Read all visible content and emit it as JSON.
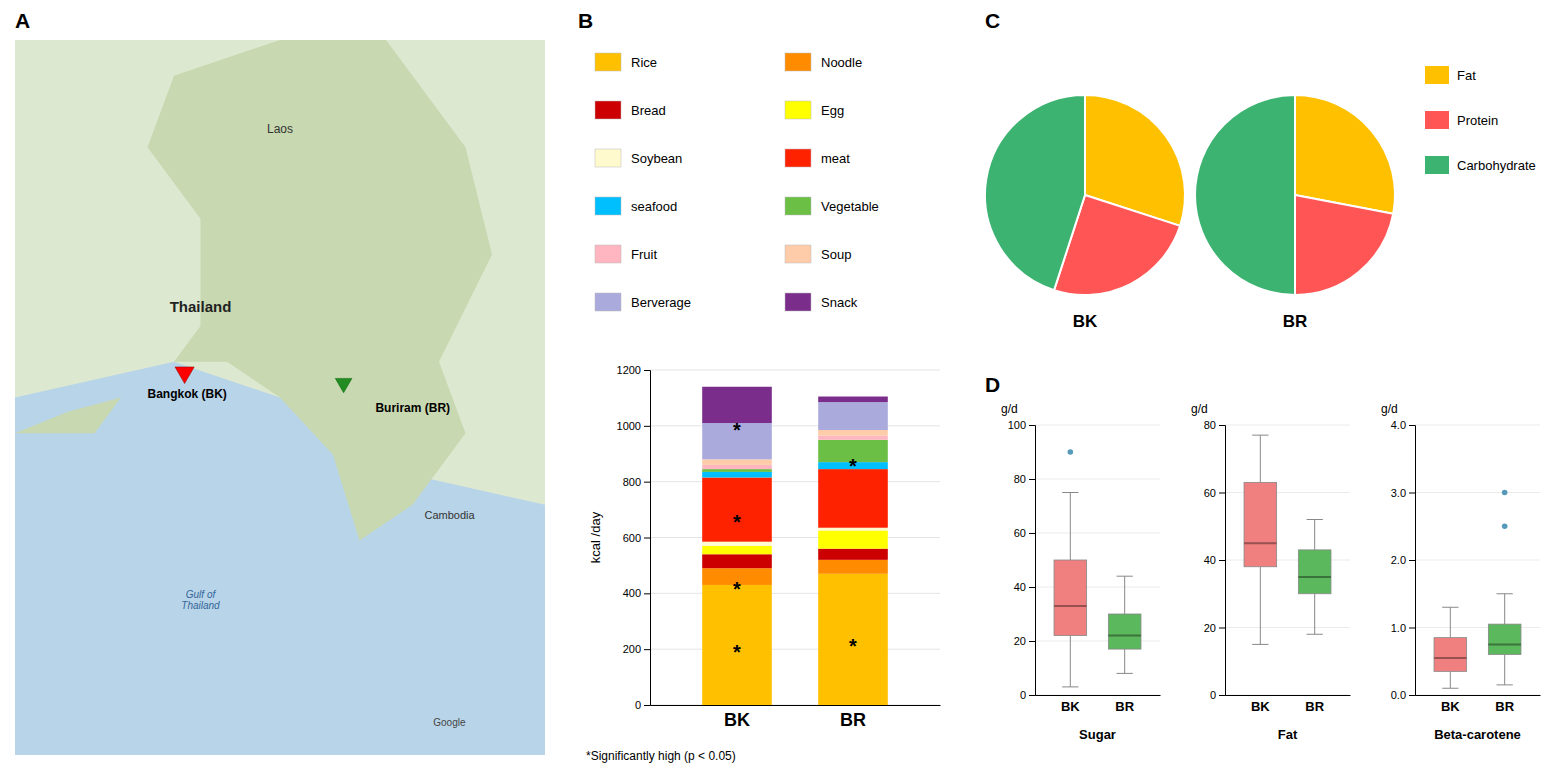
{
  "chart_data": [
    {
      "type": "map",
      "title": "A",
      "annotations": [
        "Laos",
        "Thailand",
        "Buriram (BR)",
        "Bangkok (BK)",
        "Cambodia",
        "Gulf of\nThailand",
        "Google"
      ]
    },
    {
      "type": "bar",
      "title": "B",
      "stacked": true,
      "categories": [
        "BK",
        "BR"
      ],
      "series": [
        {
          "name": "Rice",
          "color": "#FFC000",
          "values": [
            430,
            470
          ]
        },
        {
          "name": "Noodle",
          "color": "#FF8C00",
          "values": [
            60,
            50
          ]
        },
        {
          "name": "Bread",
          "color": "#CC0000",
          "values": [
            50,
            40
          ]
        },
        {
          "name": "Egg",
          "color": "#FFFF00",
          "values": [
            30,
            65
          ]
        },
        {
          "name": "Soybean",
          "color": "#FFFACD",
          "values": [
            15,
            10
          ]
        },
        {
          "name": "meat",
          "color": "#FF2200",
          "values": [
            230,
            210
          ]
        },
        {
          "name": "seafood",
          "color": "#00BFFF",
          "values": [
            20,
            25
          ]
        },
        {
          "name": "Vegetable",
          "color": "#6BBF44",
          "values": [
            10,
            80
          ]
        },
        {
          "name": "Fruit",
          "color": "#FFB6C1",
          "values": [
            15,
            15
          ]
        },
        {
          "name": "Soup",
          "color": "#FFCCAA",
          "values": [
            20,
            20
          ]
        },
        {
          "name": "Berverage",
          "color": "#AAAADD",
          "values": [
            130,
            100
          ]
        },
        {
          "name": "Snack",
          "color": "#7B2D8B",
          "values": [
            130,
            20
          ]
        }
      ],
      "ylabel": "kcal /day",
      "ylim": [
        0,
        1200
      ],
      "yticks": [
        0,
        200,
        400,
        600,
        800,
        1000,
        1200
      ],
      "grid": true,
      "legend": "top",
      "annotations": [
        {
          "text": "*",
          "x": "BK",
          "y": 215
        },
        {
          "text": "*",
          "x": "BK",
          "y": 440
        },
        {
          "text": "*",
          "x": "BK",
          "y": 680
        },
        {
          "text": "*",
          "x": "BK",
          "y": 1010
        },
        {
          "text": "*",
          "x": "BR",
          "y": 235
        },
        {
          "text": "*",
          "x": "BR",
          "y": 880
        },
        {
          "text": "*Significantly high (p < 0.05)"
        }
      ]
    },
    {
      "type": "pie",
      "title": "C",
      "categories": [
        "Fat",
        "Protein",
        "Carbohydrate"
      ],
      "colors": [
        "#FFC000",
        "#FF5555",
        "#3CB371"
      ],
      "series": [
        {
          "name": "BK",
          "values": [
            30,
            25,
            45
          ]
        },
        {
          "name": "BR",
          "values": [
            28,
            22,
            50
          ]
        }
      ],
      "legend": "right"
    },
    {
      "type": "box",
      "title": "D",
      "charts": [
        {
          "title": "Sugar",
          "ylabel": "g/d",
          "ylim": [
            0,
            100
          ],
          "yticks": [
            0,
            20,
            40,
            60,
            80,
            100
          ],
          "grid": true,
          "series": [
            {
              "name": "BK",
              "color": "#F08080",
              "whislo": 3,
              "q1": 22,
              "med": 33,
              "q3": 50,
              "whishi": 75,
              "fliers": [
                90
              ]
            },
            {
              "name": "BR",
              "color": "#5CB85C",
              "whislo": 8,
              "q1": 17,
              "med": 22,
              "q3": 30,
              "whishi": 44,
              "fliers": []
            }
          ]
        },
        {
          "title": "Fat",
          "ylabel": "g/d",
          "ylim": [
            0,
            80
          ],
          "yticks": [
            0,
            20,
            40,
            60,
            80
          ],
          "grid": true,
          "series": [
            {
              "name": "BK",
              "color": "#F08080",
              "whislo": 15,
              "q1": 38,
              "med": 45,
              "q3": 63,
              "whishi": 77,
              "fliers": []
            },
            {
              "name": "BR",
              "color": "#5CB85C",
              "whislo": 18,
              "q1": 30,
              "med": 35,
              "q3": 43,
              "whishi": 52,
              "fliers": []
            }
          ]
        },
        {
          "title": "Beta-carotene",
          "ylabel": "g/d",
          "ylim": [
            0,
            4.0
          ],
          "yticks": [
            {
              "value": 0,
              "label": "0.0"
            },
            {
              "value": 1.0,
              "label": "1.0"
            },
            {
              "value": 2.0,
              "label": "2.0"
            },
            {
              "value": 3.0,
              "label": "3.0"
            },
            {
              "value": 4.0,
              "label": "4.0"
            }
          ],
          "grid": true,
          "series": [
            {
              "name": "BK",
              "color": "#F08080",
              "whislo": 0.1,
              "q1": 0.35,
              "med": 0.55,
              "q3": 0.85,
              "whishi": 1.3,
              "fliers": []
            },
            {
              "name": "BR",
              "color": "#5CB85C",
              "whislo": 0.15,
              "q1": 0.6,
              "med": 0.75,
              "q3": 1.05,
              "whishi": 1.5,
              "fliers": [
                2.5,
                3.0
              ]
            }
          ]
        }
      ]
    }
  ]
}
